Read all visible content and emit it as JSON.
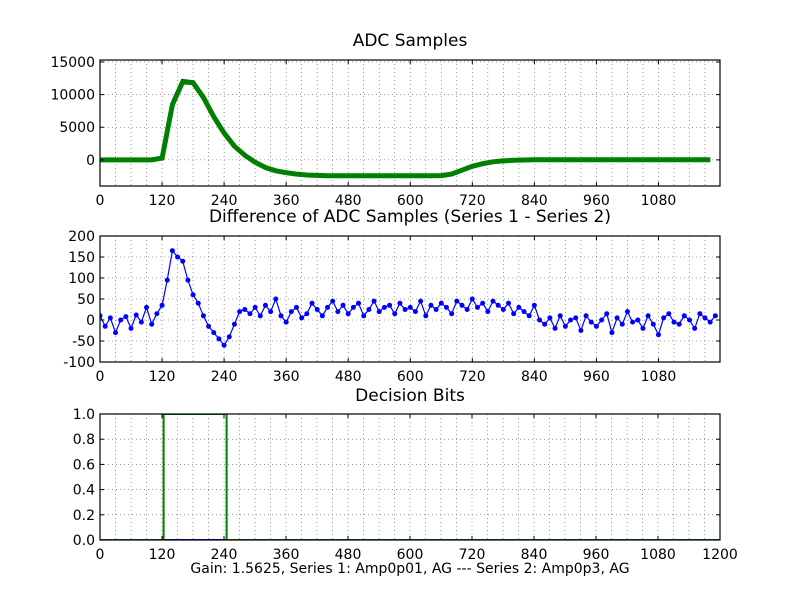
{
  "chart_data": [
    {
      "type": "line",
      "title": "ADC Samples",
      "xlim": [
        0,
        1199
      ],
      "ylim": [
        -4000,
        15300
      ],
      "xticks": [
        0,
        120,
        240,
        360,
        480,
        600,
        720,
        840,
        960,
        1080
      ],
      "yticks": [
        0,
        5000,
        10000,
        15000
      ],
      "xgrid_step": 30,
      "grid": true,
      "x": [
        0,
        20,
        40,
        60,
        80,
        100,
        120,
        140,
        160,
        180,
        200,
        220,
        240,
        260,
        280,
        300,
        320,
        340,
        360,
        380,
        400,
        420,
        440,
        460,
        480,
        500,
        520,
        540,
        560,
        580,
        600,
        620,
        640,
        660,
        680,
        700,
        720,
        740,
        760,
        780,
        800,
        820,
        840,
        860,
        880,
        900,
        920,
        940,
        960,
        980,
        1000,
        1020,
        1040,
        1060,
        1080,
        1100,
        1120,
        1140,
        1160,
        1180
      ],
      "series": [
        {
          "color": "#0000ff",
          "values": [
            0,
            0,
            0,
            0,
            0,
            0,
            300,
            8600,
            12100,
            11900,
            9600,
            6600,
            4100,
            2100,
            700,
            -350,
            -1150,
            -1650,
            -1950,
            -2150,
            -2300,
            -2350,
            -2400,
            -2400,
            -2400,
            -2400,
            -2400,
            -2400,
            -2400,
            -2400,
            -2400,
            -2400,
            -2400,
            -2380,
            -2150,
            -1550,
            -950,
            -550,
            -280,
            -130,
            -40,
            10,
            60,
            40,
            30,
            30,
            30,
            30,
            30,
            30,
            30,
            30,
            30,
            30,
            30,
            30,
            30,
            30,
            30,
            30
          ]
        },
        {
          "color": "#008000",
          "values": [
            0,
            0,
            0,
            0,
            0,
            0,
            280,
            8450,
            11950,
            11800,
            9550,
            6600,
            4100,
            2100,
            700,
            -360,
            -1160,
            -1670,
            -1970,
            -2170,
            -2320,
            -2380,
            -2420,
            -2430,
            -2430,
            -2430,
            -2430,
            -2430,
            -2430,
            -2430,
            -2430,
            -2430,
            -2430,
            -2410,
            -2180,
            -1580,
            -980,
            -580,
            -300,
            -150,
            -60,
            -10,
            20,
            20,
            20,
            20,
            20,
            20,
            20,
            20,
            20,
            20,
            20,
            20,
            20,
            20,
            20,
            20,
            20,
            20
          ]
        }
      ]
    },
    {
      "type": "line",
      "title": "Difference of ADC Samples (Series 1 - Series 2)",
      "xlim": [
        0,
        1199
      ],
      "ylim": [
        -100,
        200
      ],
      "xticks": [
        0,
        120,
        240,
        360,
        480,
        600,
        720,
        840,
        960,
        1080
      ],
      "yticks": [
        -100,
        -50,
        0,
        50,
        100,
        150,
        200
      ],
      "xgrid_step": 30,
      "grid": true,
      "x_step": 10,
      "series": [
        {
          "color": "#0000ff",
          "markers": true,
          "values": [
            10,
            -15,
            5,
            -30,
            0,
            8,
            -20,
            12,
            -5,
            30,
            -10,
            15,
            35,
            95,
            165,
            150,
            140,
            95,
            60,
            40,
            10,
            -15,
            -30,
            -45,
            -60,
            -40,
            -10,
            20,
            25,
            15,
            30,
            10,
            35,
            20,
            50,
            10,
            -5,
            20,
            30,
            5,
            15,
            40,
            25,
            10,
            30,
            45,
            20,
            35,
            15,
            30,
            40,
            10,
            25,
            45,
            20,
            30,
            35,
            15,
            40,
            25,
            30,
            20,
            45,
            10,
            35,
            25,
            40,
            30,
            15,
            45,
            35,
            25,
            50,
            30,
            40,
            20,
            45,
            35,
            25,
            40,
            15,
            30,
            20,
            10,
            35,
            0,
            -10,
            5,
            -20,
            10,
            -15,
            0,
            5,
            -25,
            10,
            -5,
            -15,
            0,
            15,
            -30,
            5,
            -10,
            20,
            -5,
            0,
            -20,
            10,
            -10,
            -35,
            5,
            15,
            -5,
            -10,
            10,
            0,
            -20,
            15,
            5,
            -5,
            10
          ]
        }
      ]
    },
    {
      "type": "line",
      "title": "Decision Bits",
      "xlabel": "Gain: 1.5625, Series 1: Amp0p01, AG --- Series 2: Amp0p3, AG",
      "xlim": [
        0,
        1200
      ],
      "ylim": [
        0,
        1
      ],
      "xticks": [
        0,
        120,
        240,
        360,
        480,
        600,
        720,
        840,
        960,
        1080,
        1200
      ],
      "yticks": [
        0.0,
        0.2,
        0.4,
        0.6,
        0.8,
        1.0
      ],
      "ytick_labels": [
        "0.0",
        "0.2",
        "0.4",
        "0.6",
        "0.8",
        "1.0"
      ],
      "xgrid_step": 30,
      "grid": true,
      "series": [
        {
          "color": "#0000ff",
          "x": [
            0,
            1200
          ],
          "values": [
            0,
            0
          ]
        },
        {
          "color": "#008000",
          "x": [
            0,
            123,
            123,
            245,
            245,
            1200
          ],
          "values": [
            0,
            0,
            1,
            1,
            0,
            0
          ]
        }
      ]
    }
  ]
}
